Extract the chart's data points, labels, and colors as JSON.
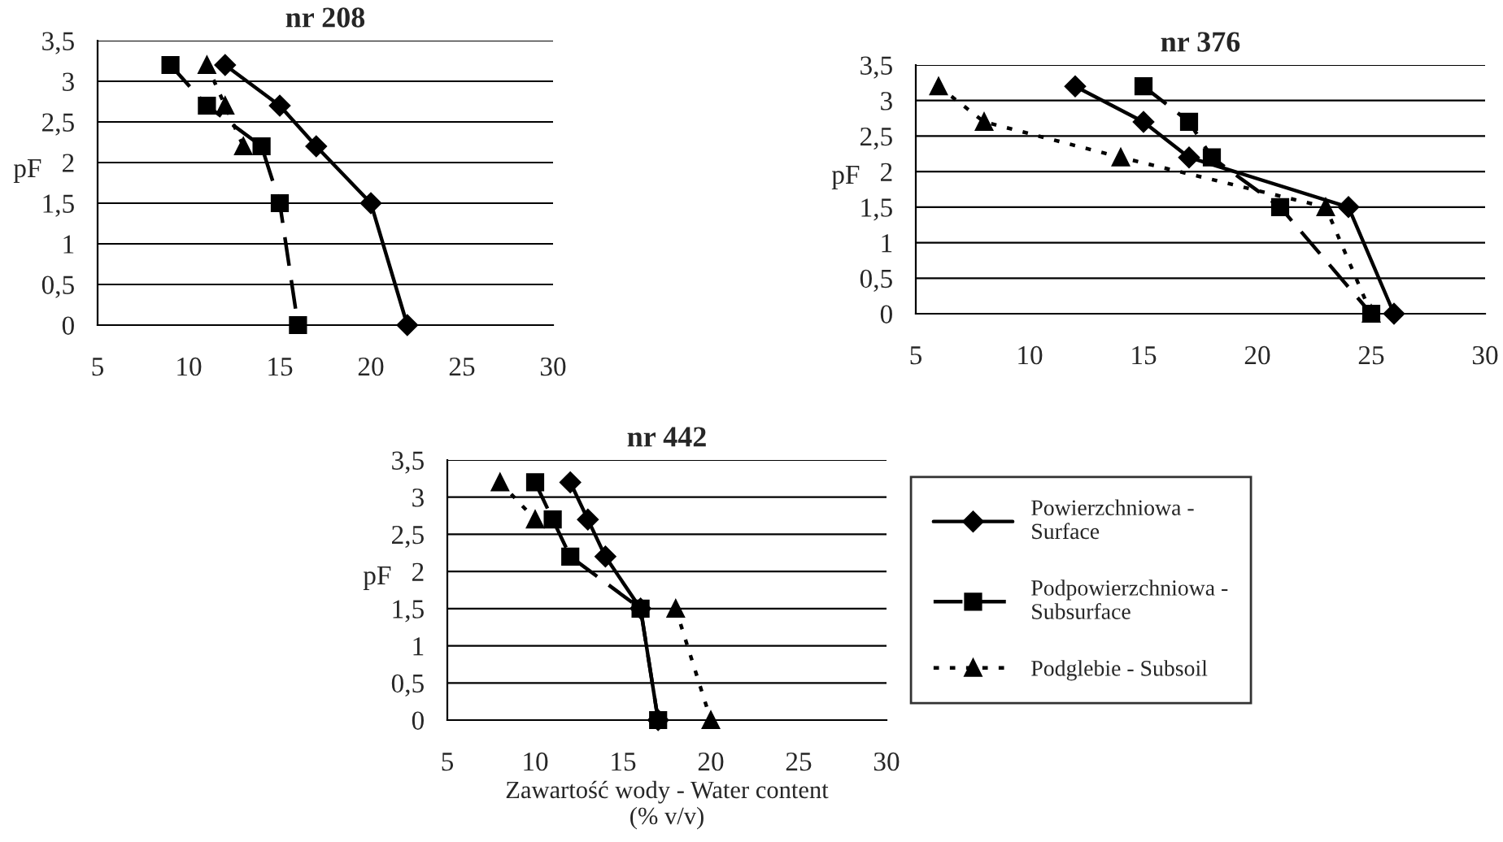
{
  "chart_data": [
    {
      "type": "line",
      "title": "nr 208",
      "ylabel": "pF",
      "xlim": [
        5,
        30
      ],
      "xticks": [
        5,
        10,
        15,
        20,
        25,
        30
      ],
      "ylim": [
        0,
        3.5
      ],
      "yticks": [
        0,
        {
          "value": 0.5,
          "label": "0,5"
        },
        1,
        {
          "value": 1.5,
          "label": "1,5"
        },
        2,
        {
          "value": 2.5,
          "label": "2,5"
        },
        3,
        {
          "value": 3.5,
          "label": "3,5"
        }
      ],
      "grid": "y",
      "legend": false,
      "series": [
        {
          "color": "#000000",
          "marker": "diamond",
          "line_style": "solid",
          "x": [
            12,
            15,
            17,
            20,
            22
          ],
          "values": [
            3.2,
            2.7,
            2.2,
            1.5,
            0
          ]
        },
        {
          "color": "#000000",
          "marker": "square",
          "line_style": "dashed",
          "x": [
            9,
            11,
            14,
            15,
            16
          ],
          "values": [
            3.2,
            2.7,
            2.2,
            1.5,
            0
          ]
        },
        {
          "color": "#000000",
          "marker": "triangle",
          "line_style": "dotted",
          "x": [
            11,
            12,
            13
          ],
          "values": [
            3.2,
            2.7,
            2.2
          ]
        }
      ]
    },
    {
      "type": "line",
      "title": "nr 376",
      "ylabel": "pF",
      "xlim": [
        5,
        30
      ],
      "xticks": [
        5,
        10,
        15,
        20,
        25,
        30
      ],
      "ylim": [
        0,
        3.5
      ],
      "yticks": [
        0,
        {
          "value": 0.5,
          "label": "0,5"
        },
        1,
        {
          "value": 1.5,
          "label": "1,5"
        },
        2,
        {
          "value": 2.5,
          "label": "2,5"
        },
        3,
        {
          "value": 3.5,
          "label": "3,5"
        }
      ],
      "grid": "y",
      "legend": false,
      "series": [
        {
          "color": "#000000",
          "marker": "diamond",
          "line_style": "solid",
          "x": [
            12,
            15,
            17,
            24,
            26
          ],
          "values": [
            3.2,
            2.7,
            2.2,
            1.5,
            0
          ]
        },
        {
          "color": "#000000",
          "marker": "square",
          "line_style": "dashed",
          "x": [
            15,
            17,
            18,
            21,
            25
          ],
          "values": [
            3.2,
            2.7,
            2.2,
            1.5,
            0
          ]
        },
        {
          "color": "#000000",
          "marker": "triangle",
          "line_style": "dotted",
          "x": [
            6,
            8,
            14,
            23,
            25
          ],
          "values": [
            3.2,
            2.7,
            2.2,
            1.5,
            0
          ]
        }
      ]
    },
    {
      "type": "line",
      "title": "nr 442",
      "ylabel": "pF",
      "xlabel": "Zawartość wody - Water content\n(% v/v)",
      "xlim": [
        5,
        30
      ],
      "xticks": [
        5,
        10,
        15,
        20,
        25,
        30
      ],
      "ylim": [
        0,
        3.5
      ],
      "yticks": [
        0,
        {
          "value": 0.5,
          "label": "0,5"
        },
        1,
        {
          "value": 1.5,
          "label": "1,5"
        },
        2,
        {
          "value": 2.5,
          "label": "2,5"
        },
        3,
        {
          "value": 3.5,
          "label": "3,5"
        }
      ],
      "grid": "y",
      "legend": "right",
      "series": [
        {
          "name": "Powierzchniowa -\nSurface",
          "color": "#000000",
          "marker": "diamond",
          "line_style": "solid",
          "x": [
            12,
            13,
            14,
            16,
            17
          ],
          "values": [
            3.2,
            2.7,
            2.2,
            1.5,
            0
          ]
        },
        {
          "name": "Podpowierzchniowa -\nSubsurface",
          "color": "#000000",
          "marker": "square",
          "line_style": "dashed",
          "x": [
            10,
            11,
            12,
            16,
            17
          ],
          "values": [
            3.2,
            2.7,
            2.2,
            1.5,
            0
          ]
        },
        {
          "name": "Podglebie - Subsoil",
          "color": "#000000",
          "marker": "triangle",
          "line_style": "dotted",
          "x": [
            8,
            10,
            null,
            18,
            20
          ],
          "values": [
            3.2,
            2.7,
            null,
            1.5,
            0
          ]
        }
      ]
    }
  ]
}
